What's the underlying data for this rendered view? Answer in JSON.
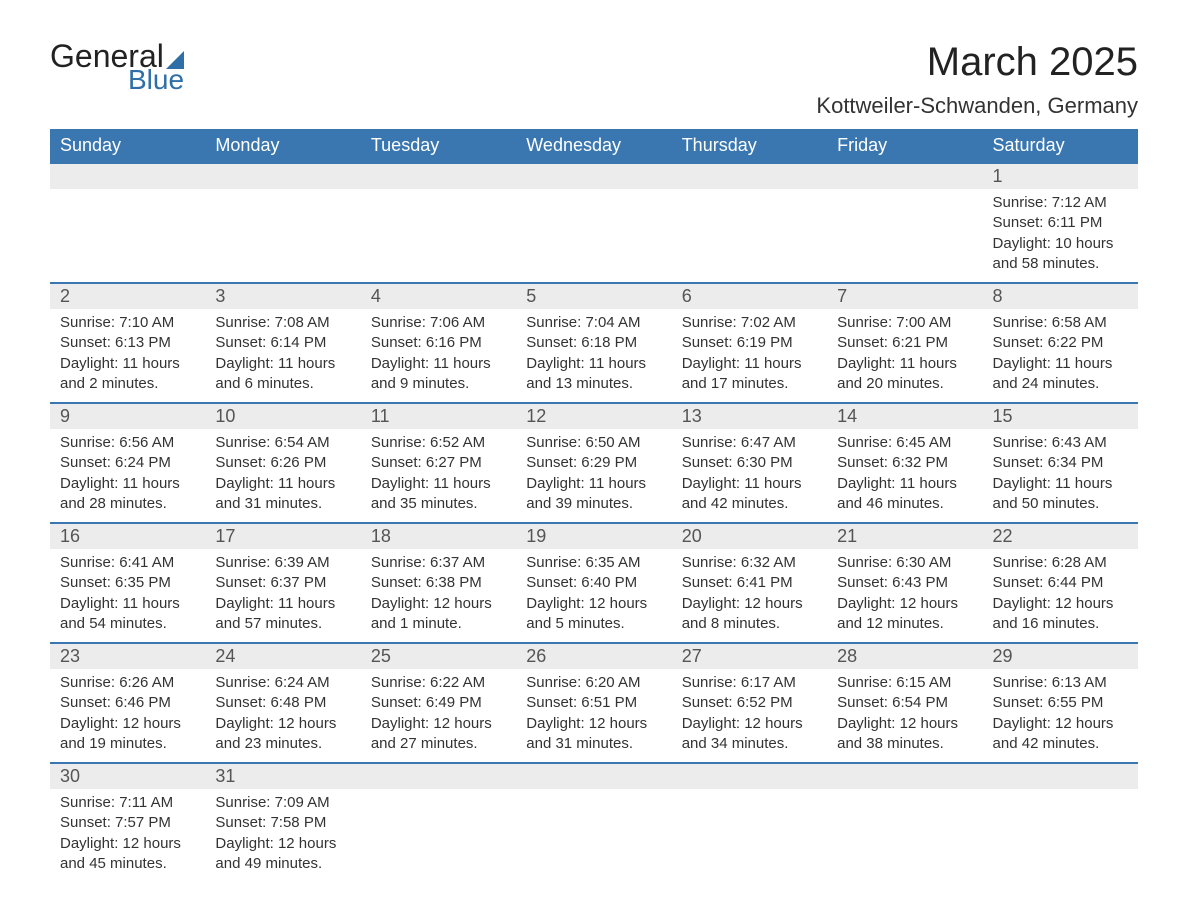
{
  "logo": {
    "word1": "General",
    "word2": "Blue"
  },
  "title": "March 2025",
  "location": "Kottweiler-Schwanden, Germany",
  "colors": {
    "header_bg": "#3a77b1",
    "header_text": "#ffffff",
    "row_divider": "#3a77b1",
    "daynum_bg": "#ececec",
    "body_text": "#333333",
    "logo_accent": "#2f6fa8"
  },
  "day_names": [
    "Sunday",
    "Monday",
    "Tuesday",
    "Wednesday",
    "Thursday",
    "Friday",
    "Saturday"
  ],
  "weeks": [
    [
      null,
      null,
      null,
      null,
      null,
      null,
      {
        "n": "1",
        "sr": "Sunrise: 7:12 AM",
        "ss": "Sunset: 6:11 PM",
        "d1": "Daylight: 10 hours",
        "d2": "and 58 minutes."
      }
    ],
    [
      {
        "n": "2",
        "sr": "Sunrise: 7:10 AM",
        "ss": "Sunset: 6:13 PM",
        "d1": "Daylight: 11 hours",
        "d2": "and 2 minutes."
      },
      {
        "n": "3",
        "sr": "Sunrise: 7:08 AM",
        "ss": "Sunset: 6:14 PM",
        "d1": "Daylight: 11 hours",
        "d2": "and 6 minutes."
      },
      {
        "n": "4",
        "sr": "Sunrise: 7:06 AM",
        "ss": "Sunset: 6:16 PM",
        "d1": "Daylight: 11 hours",
        "d2": "and 9 minutes."
      },
      {
        "n": "5",
        "sr": "Sunrise: 7:04 AM",
        "ss": "Sunset: 6:18 PM",
        "d1": "Daylight: 11 hours",
        "d2": "and 13 minutes."
      },
      {
        "n": "6",
        "sr": "Sunrise: 7:02 AM",
        "ss": "Sunset: 6:19 PM",
        "d1": "Daylight: 11 hours",
        "d2": "and 17 minutes."
      },
      {
        "n": "7",
        "sr": "Sunrise: 7:00 AM",
        "ss": "Sunset: 6:21 PM",
        "d1": "Daylight: 11 hours",
        "d2": "and 20 minutes."
      },
      {
        "n": "8",
        "sr": "Sunrise: 6:58 AM",
        "ss": "Sunset: 6:22 PM",
        "d1": "Daylight: 11 hours",
        "d2": "and 24 minutes."
      }
    ],
    [
      {
        "n": "9",
        "sr": "Sunrise: 6:56 AM",
        "ss": "Sunset: 6:24 PM",
        "d1": "Daylight: 11 hours",
        "d2": "and 28 minutes."
      },
      {
        "n": "10",
        "sr": "Sunrise: 6:54 AM",
        "ss": "Sunset: 6:26 PM",
        "d1": "Daylight: 11 hours",
        "d2": "and 31 minutes."
      },
      {
        "n": "11",
        "sr": "Sunrise: 6:52 AM",
        "ss": "Sunset: 6:27 PM",
        "d1": "Daylight: 11 hours",
        "d2": "and 35 minutes."
      },
      {
        "n": "12",
        "sr": "Sunrise: 6:50 AM",
        "ss": "Sunset: 6:29 PM",
        "d1": "Daylight: 11 hours",
        "d2": "and 39 minutes."
      },
      {
        "n": "13",
        "sr": "Sunrise: 6:47 AM",
        "ss": "Sunset: 6:30 PM",
        "d1": "Daylight: 11 hours",
        "d2": "and 42 minutes."
      },
      {
        "n": "14",
        "sr": "Sunrise: 6:45 AM",
        "ss": "Sunset: 6:32 PM",
        "d1": "Daylight: 11 hours",
        "d2": "and 46 minutes."
      },
      {
        "n": "15",
        "sr": "Sunrise: 6:43 AM",
        "ss": "Sunset: 6:34 PM",
        "d1": "Daylight: 11 hours",
        "d2": "and 50 minutes."
      }
    ],
    [
      {
        "n": "16",
        "sr": "Sunrise: 6:41 AM",
        "ss": "Sunset: 6:35 PM",
        "d1": "Daylight: 11 hours",
        "d2": "and 54 minutes."
      },
      {
        "n": "17",
        "sr": "Sunrise: 6:39 AM",
        "ss": "Sunset: 6:37 PM",
        "d1": "Daylight: 11 hours",
        "d2": "and 57 minutes."
      },
      {
        "n": "18",
        "sr": "Sunrise: 6:37 AM",
        "ss": "Sunset: 6:38 PM",
        "d1": "Daylight: 12 hours",
        "d2": "and 1 minute."
      },
      {
        "n": "19",
        "sr": "Sunrise: 6:35 AM",
        "ss": "Sunset: 6:40 PM",
        "d1": "Daylight: 12 hours",
        "d2": "and 5 minutes."
      },
      {
        "n": "20",
        "sr": "Sunrise: 6:32 AM",
        "ss": "Sunset: 6:41 PM",
        "d1": "Daylight: 12 hours",
        "d2": "and 8 minutes."
      },
      {
        "n": "21",
        "sr": "Sunrise: 6:30 AM",
        "ss": "Sunset: 6:43 PM",
        "d1": "Daylight: 12 hours",
        "d2": "and 12 minutes."
      },
      {
        "n": "22",
        "sr": "Sunrise: 6:28 AM",
        "ss": "Sunset: 6:44 PM",
        "d1": "Daylight: 12 hours",
        "d2": "and 16 minutes."
      }
    ],
    [
      {
        "n": "23",
        "sr": "Sunrise: 6:26 AM",
        "ss": "Sunset: 6:46 PM",
        "d1": "Daylight: 12 hours",
        "d2": "and 19 minutes."
      },
      {
        "n": "24",
        "sr": "Sunrise: 6:24 AM",
        "ss": "Sunset: 6:48 PM",
        "d1": "Daylight: 12 hours",
        "d2": "and 23 minutes."
      },
      {
        "n": "25",
        "sr": "Sunrise: 6:22 AM",
        "ss": "Sunset: 6:49 PM",
        "d1": "Daylight: 12 hours",
        "d2": "and 27 minutes."
      },
      {
        "n": "26",
        "sr": "Sunrise: 6:20 AM",
        "ss": "Sunset: 6:51 PM",
        "d1": "Daylight: 12 hours",
        "d2": "and 31 minutes."
      },
      {
        "n": "27",
        "sr": "Sunrise: 6:17 AM",
        "ss": "Sunset: 6:52 PM",
        "d1": "Daylight: 12 hours",
        "d2": "and 34 minutes."
      },
      {
        "n": "28",
        "sr": "Sunrise: 6:15 AM",
        "ss": "Sunset: 6:54 PM",
        "d1": "Daylight: 12 hours",
        "d2": "and 38 minutes."
      },
      {
        "n": "29",
        "sr": "Sunrise: 6:13 AM",
        "ss": "Sunset: 6:55 PM",
        "d1": "Daylight: 12 hours",
        "d2": "and 42 minutes."
      }
    ],
    [
      {
        "n": "30",
        "sr": "Sunrise: 7:11 AM",
        "ss": "Sunset: 7:57 PM",
        "d1": "Daylight: 12 hours",
        "d2": "and 45 minutes."
      },
      {
        "n": "31",
        "sr": "Sunrise: 7:09 AM",
        "ss": "Sunset: 7:58 PM",
        "d1": "Daylight: 12 hours",
        "d2": "and 49 minutes."
      },
      null,
      null,
      null,
      null,
      null
    ]
  ]
}
